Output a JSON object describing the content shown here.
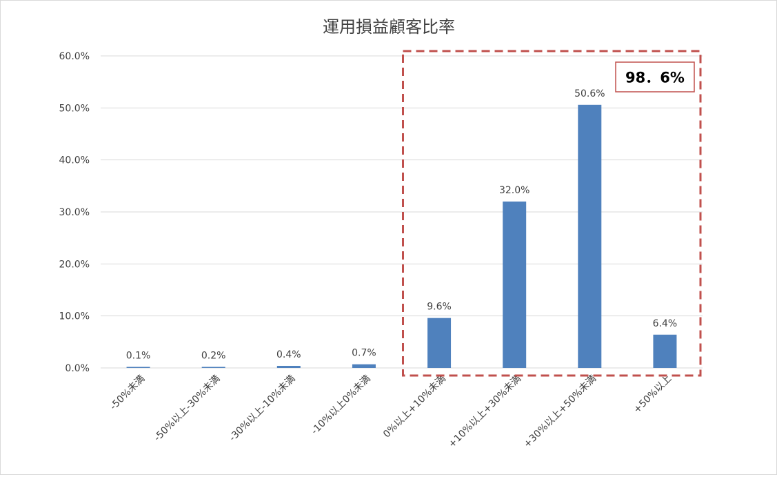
{
  "chart_data": {
    "type": "bar",
    "title": "運用損益顧客比率",
    "categories": [
      "-50%未満",
      "-50%以上-30%未満",
      "-30%以上-10%未満",
      "-10%以上0%未満",
      "0%以上+10%未満",
      "+10%以上+30%未満",
      "+30%以上+50%未満",
      "+50%以上"
    ],
    "values": [
      0.1,
      0.2,
      0.4,
      0.7,
      9.6,
      32.0,
      50.6,
      6.4
    ],
    "data_labels": [
      "0.1%",
      "0.2%",
      "0.4%",
      "0.7%",
      "9.6%",
      "32.0%",
      "50.6%",
      "6.4%"
    ],
    "ylim": [
      0,
      60
    ],
    "yticks": [
      0,
      10,
      20,
      30,
      40,
      50,
      60
    ],
    "ytick_labels": [
      "0.0%",
      "10.0%",
      "20.0%",
      "30.0%",
      "40.0%",
      "50.0%",
      "60.0%"
    ],
    "xlabel": "",
    "ylabel": "",
    "grid": true,
    "legend": "none",
    "highlight": {
      "label": "98．6%",
      "from_index": 4,
      "to_index": 7
    },
    "colors": {
      "bar": "#4f81bd",
      "highlight_border": "#c0504d",
      "grid": "#d9d9d9",
      "text": "#404040"
    }
  }
}
